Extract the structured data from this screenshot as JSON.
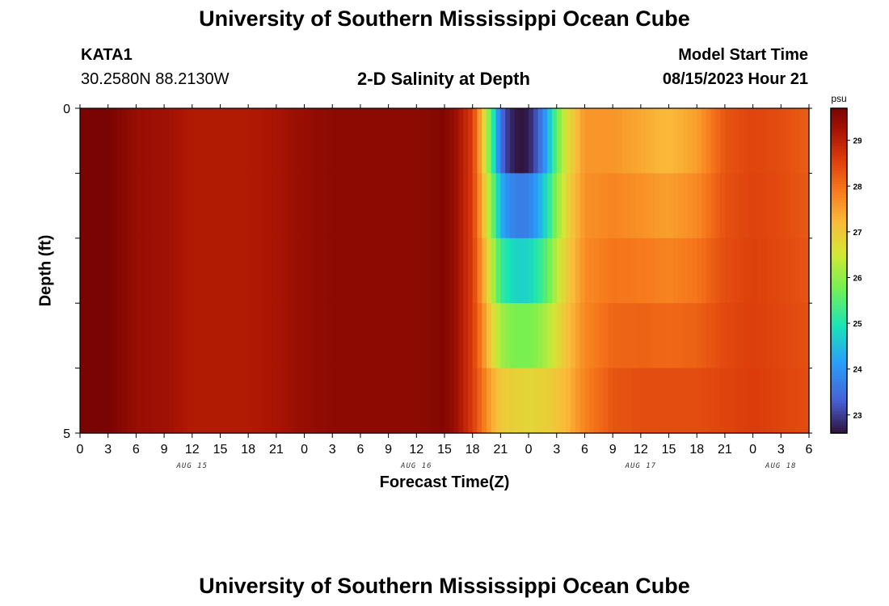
{
  "header": {
    "title": "University of Southern Mississippi Ocean Cube",
    "station": "KATA1",
    "coords": "30.2580N  88.2130W",
    "subtitle": "2-D Salinity at Depth",
    "start_label": "Model Start Time",
    "start_value": "08/15/2023 Hour 21"
  },
  "footer": {
    "title": "University of Southern Mississippi Ocean Cube"
  },
  "chart_data": {
    "type": "heatmap",
    "title": "2-D Salinity at Depth",
    "xlabel": "Forecast Time(Z)",
    "ylabel": "Depth (ft)",
    "x_start_hour": 0,
    "x_end_hour": 78,
    "ylim": [
      0,
      5
    ],
    "y_ticks": [
      "0",
      "5"
    ],
    "depth_layers": 5,
    "x_tick_labels": [
      "0",
      "3",
      "6",
      "9",
      "12",
      "15",
      "18",
      "21",
      "0",
      "3",
      "6",
      "9",
      "12",
      "15",
      "18",
      "21",
      "0",
      "3",
      "6",
      "9",
      "12",
      "15",
      "18",
      "21",
      "0",
      "3",
      "6"
    ],
    "day_labels": [
      {
        "label": "AUG 15",
        "hour": 12
      },
      {
        "label": "AUG 16",
        "hour": 36
      },
      {
        "label": "AUG 17",
        "hour": 60
      },
      {
        "label": "AUG 18",
        "hour": 75
      }
    ],
    "colorbar": {
      "unit": "psu",
      "min": 22.6,
      "max": 29.7,
      "ticks": [
        23,
        24,
        25,
        26,
        27,
        28,
        29
      ]
    },
    "salinity_surface": [
      [
        0,
        29.7
      ],
      [
        3,
        29.7
      ],
      [
        6,
        29.4
      ],
      [
        9,
        29.3
      ],
      [
        12,
        29.1
      ],
      [
        15,
        29.1
      ],
      [
        18,
        29.1
      ],
      [
        21,
        29.2
      ],
      [
        24,
        29.4
      ],
      [
        27,
        29.5
      ],
      [
        30,
        29.5
      ],
      [
        33,
        29.5
      ],
      [
        36,
        29.5
      ],
      [
        39,
        29.6
      ],
      [
        40,
        29.4
      ],
      [
        41,
        29.0
      ],
      [
        42,
        28.6
      ],
      [
        43,
        27.2
      ],
      [
        44,
        25.5
      ],
      [
        45,
        23.5
      ],
      [
        46,
        22.8
      ],
      [
        47,
        22.6
      ],
      [
        48,
        22.7
      ],
      [
        49,
        23.3
      ],
      [
        50,
        24.3
      ],
      [
        51,
        25.6
      ],
      [
        52,
        26.6
      ],
      [
        54,
        27.6
      ],
      [
        57,
        27.6
      ],
      [
        60,
        27.4
      ],
      [
        63,
        27.2
      ],
      [
        66,
        27.5
      ],
      [
        69,
        28.3
      ],
      [
        72,
        28.5
      ],
      [
        75,
        28.4
      ],
      [
        78,
        28.2
      ]
    ],
    "salinity_bottom": [
      [
        0,
        29.7
      ],
      [
        3,
        29.7
      ],
      [
        6,
        29.4
      ],
      [
        9,
        29.3
      ],
      [
        12,
        29.1
      ],
      [
        15,
        29.1
      ],
      [
        18,
        29.1
      ],
      [
        21,
        29.2
      ],
      [
        24,
        29.4
      ],
      [
        27,
        29.5
      ],
      [
        30,
        29.5
      ],
      [
        33,
        29.5
      ],
      [
        36,
        29.5
      ],
      [
        39,
        29.6
      ],
      [
        40,
        29.4
      ],
      [
        41,
        29.0
      ],
      [
        42,
        28.6
      ],
      [
        43,
        28.0
      ],
      [
        44,
        27.4
      ],
      [
        45,
        27.0
      ],
      [
        46,
        26.9
      ],
      [
        48,
        26.8
      ],
      [
        50,
        26.9
      ],
      [
        52,
        27.2
      ],
      [
        54,
        27.8
      ],
      [
        57,
        28.3
      ],
      [
        60,
        28.4
      ],
      [
        63,
        28.4
      ],
      [
        66,
        28.4
      ],
      [
        69,
        28.5
      ],
      [
        72,
        28.6
      ],
      [
        75,
        28.5
      ],
      [
        78,
        28.4
      ]
    ]
  }
}
